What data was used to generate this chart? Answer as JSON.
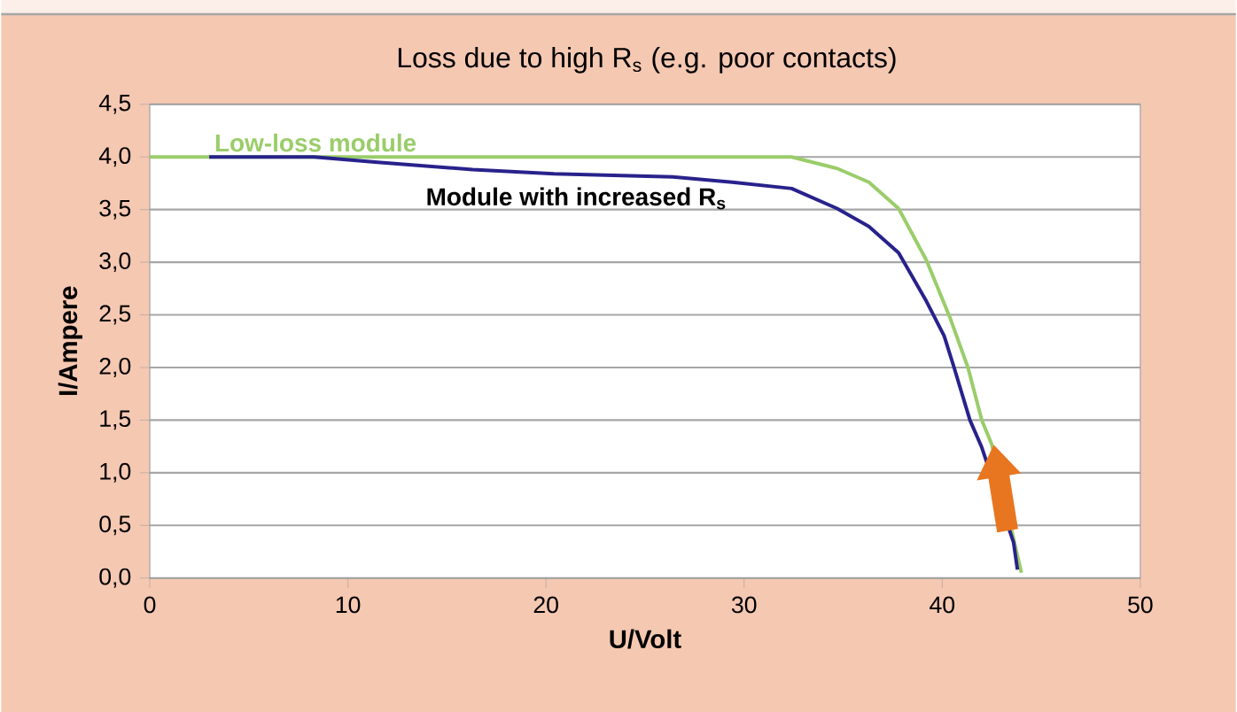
{
  "chart_data": {
    "type": "line",
    "title": "Loss due to high R$_{s}$ (e.g. poor contacts)",
    "xlabel": "U/Volt",
    "ylabel": "I/Ampere",
    "series": [
      {
        "name": "Low-loss module",
        "color": "#9acd6a",
        "x": [
          0,
          10,
          20,
          30,
          32.4,
          34.7,
          36.3,
          37.8,
          39.2,
          40.4,
          41.3,
          42.0,
          42.5,
          43.3,
          44.0
        ],
        "values": [
          4.0,
          4.0,
          4.0,
          4.0,
          4.0,
          3.89,
          3.76,
          3.51,
          3.02,
          2.47,
          2.0,
          1.5,
          1.27,
          null,
          0.05
        ]
      },
      {
        "name": "Module with increased R$_{s}$",
        "color": "#28228c",
        "x": [
          3.0,
          8.3,
          11.5,
          16.3,
          20.4,
          26.4,
          29.4,
          32.4,
          34.7,
          36.3,
          37.8,
          39.2,
          40.1,
          40.6,
          41.4,
          42.0,
          42.9,
          43.6,
          43.8
        ],
        "values": [
          4.0,
          4.0,
          3.95,
          3.88,
          3.84,
          3.81,
          3.76,
          3.7,
          3.51,
          3.34,
          3.09,
          2.63,
          2.3,
          2.0,
          1.5,
          1.24,
          null,
          0.34,
          0.08
        ]
      }
    ],
    "xlim": [
      0,
      50
    ],
    "xticks": [
      0,
      10,
      20,
      30,
      40,
      50
    ],
    "ylim": [
      0,
      4.5
    ],
    "yticks": [
      {
        "value": 0,
        "label": "0,0"
      },
      {
        "value": 0.5,
        "label": "0,5"
      },
      {
        "value": 1,
        "label": "1,0"
      },
      {
        "value": 1.5,
        "label": "1,5"
      },
      {
        "value": 2,
        "label": "2,0"
      },
      {
        "value": 2.5,
        "label": "2,5"
      },
      {
        "value": 3,
        "label": "3,0"
      },
      {
        "value": 3.5,
        "label": "3,5"
      },
      {
        "value": 4,
        "label": "4,0"
      },
      {
        "value": 4.5,
        "label": "4,5"
      }
    ],
    "grid": "y",
    "legend": false,
    "marker": "none",
    "line_style": "solid"
  }
}
